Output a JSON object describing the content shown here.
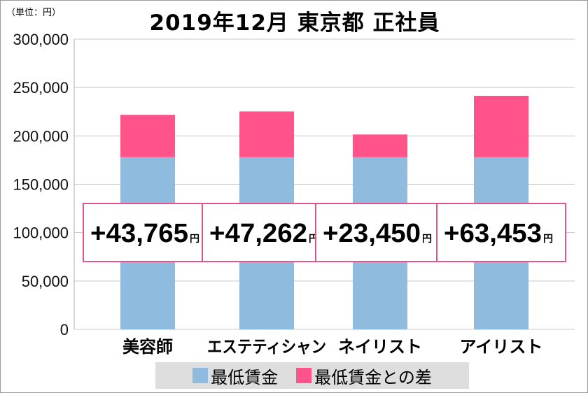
{
  "unit_label": "（単位：円）",
  "chart_data": {
    "type": "bar",
    "stacked": true,
    "title": "2019年12月 東京都 正社員",
    "categories": [
      "美容師",
      "エステティシャン",
      "ネイリスト",
      "アイリスト"
    ],
    "series": [
      {
        "name": "最低賃金",
        "values": [
          178000,
          178000,
          178000,
          178000
        ],
        "color": "#8fbbdf"
      },
      {
        "name": "最低賃金との差",
        "values": [
          43765,
          47262,
          23450,
          63453
        ],
        "color": "#ff538a"
      }
    ],
    "data_labels": [
      "+43,765",
      "+47,262",
      "+23,450",
      "+63,453"
    ],
    "data_label_suffix": "円",
    "yticks": [
      "0",
      "50,000",
      "100,000",
      "150,000",
      "200,000",
      "250,000",
      "300,000"
    ],
    "ylim": [
      0,
      300000
    ],
    "grid": true,
    "legend": "bottom",
    "label_border_color": "#e05590"
  }
}
